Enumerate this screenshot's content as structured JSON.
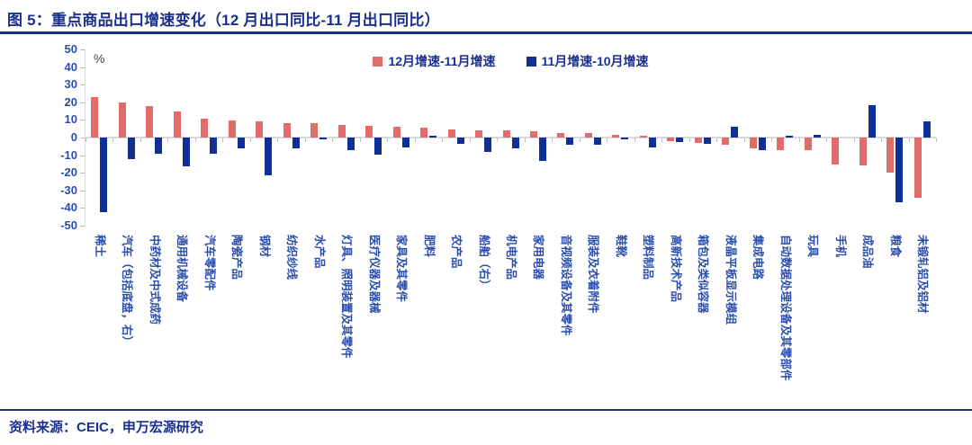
{
  "title": "图 5：重点商品出口增速变化（12 月出口同比-11 月出口同比）",
  "source": "资料来源：CEIC，申万宏源研究",
  "colors": {
    "title_blue": "#1B2F90",
    "axis_text_blue": "#2A4DB0",
    "series_red": "#E06C6C",
    "series_navy": "#0F2F96",
    "axis_line_gray": "#d9d9d9"
  },
  "chart_data": {
    "type": "bar",
    "title": "图 5：重点商品出口增速变化（12 月出口同比-11 月出口同比）",
    "unit_label": "%",
    "ylim": [
      -50,
      50
    ],
    "yticks": [
      50,
      40,
      30,
      20,
      10,
      0,
      -10,
      -20,
      -30,
      -40,
      -50
    ],
    "grid": false,
    "legend_position": "top-center",
    "categories": [
      "稀土",
      "汽车（包括底盘，右）",
      "中药材及中式成药",
      "通用机械设备",
      "汽车零配件",
      "陶瓷产品",
      "钢材",
      "纺织纱线",
      "水产品",
      "灯具、照明装置及其零件",
      "医疗仪器及器械",
      "家具及其零件",
      "肥料",
      "农产品",
      "船舶（右）",
      "机电产品",
      "家用电器",
      "音视频设备及其零件",
      "服装及衣着附件",
      "鞋靴",
      "塑料制品",
      "高新技术产品",
      "箱包及类似容器",
      "液晶平板显示模组",
      "集成电路",
      "自动数据处理设备及其零部件",
      "玩具",
      "手机",
      "成品油",
      "粮食",
      "未锻轧铝及铝材"
    ],
    "series": [
      {
        "name": "12月增速-11月增速",
        "color": "#E06C6C",
        "values": [
          23,
          20,
          18,
          15,
          10.5,
          9.5,
          9,
          8,
          8,
          7,
          6.8,
          6,
          5.6,
          4.6,
          4.2,
          4,
          3.6,
          2.5,
          2.3,
          1.5,
          0.8,
          -2,
          -3.2,
          -4.1,
          -6.3,
          -6.9,
          -7.3,
          -15.5,
          -16,
          -20,
          -34
        ]
      },
      {
        "name": "11月增速-10月增速",
        "color": "#0F2F96",
        "values": [
          -42.5,
          -12,
          -9,
          -16.5,
          -9,
          -6,
          -21.5,
          -6,
          -1.2,
          -7,
          -9.7,
          -5.7,
          1,
          -3.4,
          -8.4,
          -5.9,
          -13.4,
          -4.1,
          -4.1,
          -0.8,
          -5.5,
          -2.6,
          -3.8,
          6.1,
          -7.3,
          0.8,
          1.5,
          0,
          18.5,
          -36.8,
          9
        ]
      }
    ]
  }
}
